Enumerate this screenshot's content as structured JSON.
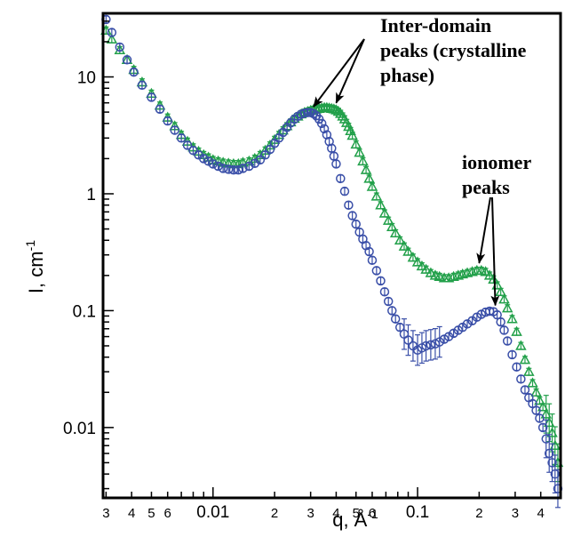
{
  "chart_data": {
    "type": "scatter",
    "xscale": "log",
    "yscale": "log",
    "xlim": [
      0.0029,
      0.5
    ],
    "ylim": [
      0.0025,
      35
    ],
    "grid": false,
    "legend": "none",
    "xlabel": {
      "base": "q, Å",
      "sup": "-1"
    },
    "ylabel": {
      "base": "I, cm",
      "sup": "-1"
    },
    "x_ticks": [
      {
        "value": 0.003,
        "label": "3"
      },
      {
        "value": 0.004,
        "label": "4"
      },
      {
        "value": 0.005,
        "label": "5"
      },
      {
        "value": 0.006,
        "label": "6"
      },
      {
        "value": 0.007,
        "label": ""
      },
      {
        "value": 0.008,
        "label": ""
      },
      {
        "value": 0.009,
        "label": ""
      },
      {
        "value": 0.01,
        "label": "0.01",
        "major": true
      },
      {
        "value": 0.02,
        "label": "2"
      },
      {
        "value": 0.03,
        "label": "3"
      },
      {
        "value": 0.04,
        "label": "4"
      },
      {
        "value": 0.05,
        "label": "5"
      },
      {
        "value": 0.06,
        "label": "6"
      },
      {
        "value": 0.07,
        "label": ""
      },
      {
        "value": 0.08,
        "label": ""
      },
      {
        "value": 0.09,
        "label": ""
      },
      {
        "value": 0.1,
        "label": "0.1",
        "major": true
      },
      {
        "value": 0.2,
        "label": "2"
      },
      {
        "value": 0.3,
        "label": "3"
      },
      {
        "value": 0.4,
        "label": "4"
      }
    ],
    "y_ticks": [
      {
        "value": 10,
        "label": "10"
      },
      {
        "value": 1,
        "label": "1"
      },
      {
        "value": 0.1,
        "label": "0.1"
      },
      {
        "value": 0.01,
        "label": "0.01"
      }
    ],
    "annotations": [
      {
        "lines": [
          "Inter-domain",
          "peaks  (crystalline",
          "phase)"
        ],
        "arrows_to": [
          [
            0.031,
            5.0
          ],
          [
            0.04,
            5.4
          ]
        ]
      },
      {
        "lines": [
          "ionomer",
          "peaks"
        ],
        "arrows_to": [
          [
            0.2,
            0.23
          ],
          [
            0.24,
            0.1
          ]
        ]
      }
    ],
    "series": [
      {
        "marker": "triangle",
        "color": "#22a04a",
        "x": [
          0.003,
          0.0032,
          0.0035,
          0.0038,
          0.0041,
          0.0045,
          0.005,
          0.0055,
          0.006,
          0.0065,
          0.007,
          0.0075,
          0.008,
          0.0085,
          0.009,
          0.0095,
          0.01,
          0.0106,
          0.0112,
          0.0119,
          0.0126,
          0.0133,
          0.014,
          0.015,
          0.016,
          0.017,
          0.018,
          0.019,
          0.02,
          0.021,
          0.022,
          0.023,
          0.024,
          0.025,
          0.026,
          0.027,
          0.028,
          0.029,
          0.03,
          0.031,
          0.032,
          0.033,
          0.034,
          0.035,
          0.036,
          0.037,
          0.038,
          0.039,
          0.04,
          0.041,
          0.042,
          0.043,
          0.044,
          0.045,
          0.046,
          0.047,
          0.048,
          0.05,
          0.052,
          0.054,
          0.056,
          0.058,
          0.06,
          0.063,
          0.066,
          0.069,
          0.072,
          0.075,
          0.078,
          0.082,
          0.086,
          0.09,
          0.095,
          0.1,
          0.105,
          0.11,
          0.116,
          0.122,
          0.128,
          0.135,
          0.142,
          0.15,
          0.158,
          0.166,
          0.175,
          0.185,
          0.195,
          0.205,
          0.215,
          0.225,
          0.235,
          0.245,
          0.255,
          0.265,
          0.275,
          0.29,
          0.305,
          0.32,
          0.335,
          0.35,
          0.365,
          0.38,
          0.395,
          0.41,
          0.425,
          0.44,
          0.455,
          0.47,
          0.485
        ],
        "y": [
          25,
          21,
          17,
          14,
          11.5,
          9,
          7.2,
          5.7,
          4.5,
          3.8,
          3.2,
          2.8,
          2.5,
          2.3,
          2.15,
          2.05,
          1.95,
          1.9,
          1.85,
          1.82,
          1.8,
          1.8,
          1.85,
          1.9,
          2.0,
          2.15,
          2.35,
          2.6,
          2.9,
          3.2,
          3.5,
          3.8,
          4.1,
          4.4,
          4.6,
          4.8,
          4.95,
          5.05,
          5.15,
          5.25,
          5.3,
          5.35,
          5.4,
          5.45,
          5.45,
          5.4,
          5.35,
          5.3,
          5.2,
          5.05,
          4.85,
          4.6,
          4.35,
          4.05,
          3.75,
          3.45,
          3.15,
          2.65,
          2.25,
          1.9,
          1.6,
          1.35,
          1.15,
          0.95,
          0.8,
          0.68,
          0.59,
          0.52,
          0.46,
          0.4,
          0.355,
          0.32,
          0.285,
          0.26,
          0.24,
          0.225,
          0.21,
          0.2,
          0.195,
          0.19,
          0.19,
          0.195,
          0.2,
          0.205,
          0.21,
          0.215,
          0.22,
          0.22,
          0.215,
          0.2,
          0.185,
          0.165,
          0.145,
          0.125,
          0.105,
          0.085,
          0.066,
          0.05,
          0.038,
          0.03,
          0.024,
          0.02,
          0.017,
          0.015,
          0.013,
          0.011,
          0.009,
          0.007,
          0.005
        ]
      },
      {
        "marker": "circle",
        "color": "#3a4fa8",
        "x": [
          0.003,
          0.0032,
          0.0035,
          0.0038,
          0.0041,
          0.0045,
          0.005,
          0.0055,
          0.006,
          0.0065,
          0.007,
          0.0075,
          0.008,
          0.0085,
          0.009,
          0.0095,
          0.01,
          0.0106,
          0.0112,
          0.0119,
          0.0126,
          0.0133,
          0.014,
          0.015,
          0.016,
          0.017,
          0.018,
          0.019,
          0.02,
          0.021,
          0.022,
          0.023,
          0.024,
          0.025,
          0.026,
          0.027,
          0.028,
          0.029,
          0.03,
          0.031,
          0.032,
          0.033,
          0.034,
          0.035,
          0.036,
          0.037,
          0.038,
          0.039,
          0.04,
          0.042,
          0.044,
          0.046,
          0.048,
          0.05,
          0.052,
          0.054,
          0.056,
          0.058,
          0.06,
          0.063,
          0.066,
          0.069,
          0.072,
          0.075,
          0.078,
          0.082,
          0.086,
          0.09,
          0.095,
          0.1,
          0.105,
          0.11,
          0.116,
          0.122,
          0.128,
          0.135,
          0.142,
          0.15,
          0.158,
          0.166,
          0.175,
          0.185,
          0.195,
          0.205,
          0.215,
          0.225,
          0.235,
          0.245,
          0.255,
          0.265,
          0.275,
          0.29,
          0.305,
          0.32,
          0.335,
          0.35,
          0.365,
          0.38,
          0.395,
          0.41,
          0.425,
          0.44,
          0.455,
          0.47,
          0.485
        ],
        "y": [
          31,
          24,
          18,
          14,
          11,
          8.5,
          6.7,
          5.3,
          4.2,
          3.5,
          3.0,
          2.6,
          2.35,
          2.15,
          2.0,
          1.9,
          1.8,
          1.72,
          1.65,
          1.62,
          1.6,
          1.6,
          1.65,
          1.72,
          1.82,
          1.95,
          2.15,
          2.4,
          2.7,
          3.0,
          3.35,
          3.7,
          4.05,
          4.35,
          4.6,
          4.8,
          4.9,
          4.95,
          4.95,
          4.85,
          4.65,
          4.35,
          4.0,
          3.6,
          3.2,
          2.8,
          2.45,
          2.1,
          1.8,
          1.35,
          1.05,
          0.8,
          0.65,
          0.55,
          0.47,
          0.41,
          0.36,
          0.32,
          0.27,
          0.22,
          0.18,
          0.145,
          0.12,
          0.1,
          0.085,
          0.072,
          0.063,
          0.056,
          0.05,
          0.046,
          0.048,
          0.05,
          0.051,
          0.052,
          0.054,
          0.057,
          0.06,
          0.064,
          0.068,
          0.072,
          0.077,
          0.082,
          0.088,
          0.093,
          0.097,
          0.099,
          0.098,
          0.092,
          0.08,
          0.068,
          0.055,
          0.042,
          0.033,
          0.026,
          0.021,
          0.018,
          0.016,
          0.014,
          0.012,
          0.01,
          0.008,
          0.006,
          0.005,
          0.004,
          0.003
        ]
      }
    ]
  }
}
